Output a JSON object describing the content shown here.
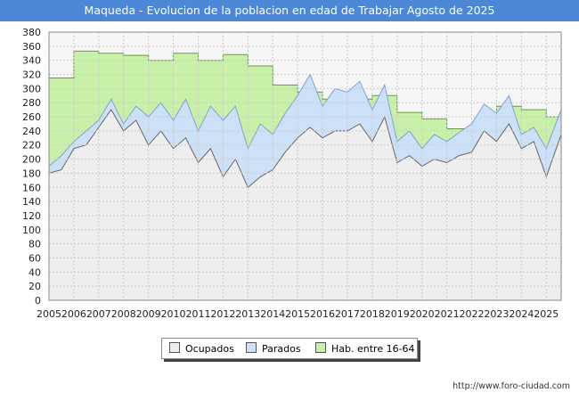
{
  "title": "Maqueda - Evolucion de la poblacion en edad de Trabajar Agosto de 2025",
  "url": "http://www.foro-ciudad.com",
  "chart_data": {
    "type": "area",
    "xlabel": "",
    "ylabel": "",
    "ylim": [
      0,
      380
    ],
    "xlim": [
      2005,
      2025.6
    ],
    "yticks": [
      0,
      20,
      40,
      60,
      80,
      100,
      120,
      140,
      160,
      180,
      200,
      220,
      240,
      260,
      280,
      300,
      320,
      340,
      360,
      380
    ],
    "xticks": [
      "2005",
      "2006",
      "2007",
      "2008",
      "2009",
      "2010",
      "2011",
      "2012",
      "2013",
      "2014",
      "2015",
      "2016",
      "2017",
      "2018",
      "2019",
      "2020",
      "2021",
      "2022",
      "2023",
      "2024",
      "2025"
    ],
    "grid": true,
    "legend_position": "bottom",
    "legend": [
      {
        "name": "Ocupados",
        "color": "#eeeeee"
      },
      {
        "name": "Parados",
        "color": "#cce0f7"
      },
      {
        "name": "Hab. entre 16-64",
        "color": "#c8f0a8"
      }
    ],
    "series": [
      {
        "name": "Hab. entre 16-64",
        "x": [
          2005,
          2006,
          2007,
          2008,
          2009,
          2010,
          2011,
          2012,
          2013,
          2014,
          2015,
          2016,
          2017,
          2018,
          2019,
          2020,
          2021,
          2022,
          2023,
          2024,
          2025
        ],
        "values": [
          315,
          353,
          350,
          347,
          340,
          350,
          340,
          348,
          332,
          305,
          295,
          285,
          285,
          290,
          266,
          257,
          243,
          248,
          275,
          270,
          260
        ]
      },
      {
        "name": "Parados",
        "x": [
          2005,
          2005.5,
          2006,
          2006.5,
          2007,
          2007.5,
          2008,
          2008.5,
          2009,
          2009.5,
          2010,
          2010.5,
          2011,
          2011.5,
          2012,
          2012.5,
          2013,
          2013.5,
          2014,
          2014.5,
          2015,
          2015.5,
          2016,
          2016.5,
          2017,
          2017.5,
          2018,
          2018.5,
          2019,
          2019.5,
          2020,
          2020.5,
          2021,
          2021.5,
          2022,
          2022.5,
          2023,
          2023.5,
          2024,
          2024.5,
          2025,
          2025.6
        ],
        "values": [
          190,
          205,
          225,
          240,
          255,
          285,
          250,
          275,
          260,
          280,
          255,
          285,
          240,
          275,
          255,
          275,
          215,
          250,
          235,
          265,
          290,
          320,
          275,
          300,
          295,
          310,
          270,
          305,
          225,
          240,
          215,
          235,
          225,
          238,
          250,
          278,
          265,
          290,
          235,
          245,
          215,
          270
        ]
      },
      {
        "name": "Ocupados",
        "x": [
          2005,
          2005.5,
          2006,
          2006.5,
          2007,
          2007.5,
          2008,
          2008.5,
          2009,
          2009.5,
          2010,
          2010.5,
          2011,
          2011.5,
          2012,
          2012.5,
          2013,
          2013.5,
          2014,
          2014.5,
          2015,
          2015.5,
          2016,
          2016.5,
          2017,
          2017.5,
          2018,
          2018.5,
          2019,
          2019.5,
          2020,
          2020.5,
          2021,
          2021.5,
          2022,
          2022.5,
          2023,
          2023.5,
          2024,
          2024.5,
          2025,
          2025.6
        ],
        "values": [
          180,
          185,
          215,
          220,
          245,
          270,
          240,
          255,
          220,
          240,
          215,
          230,
          195,
          215,
          175,
          200,
          160,
          175,
          185,
          210,
          230,
          245,
          230,
          240,
          240,
          250,
          225,
          260,
          195,
          205,
          190,
          200,
          195,
          205,
          210,
          240,
          225,
          250,
          215,
          225,
          175,
          235
        ]
      }
    ]
  }
}
